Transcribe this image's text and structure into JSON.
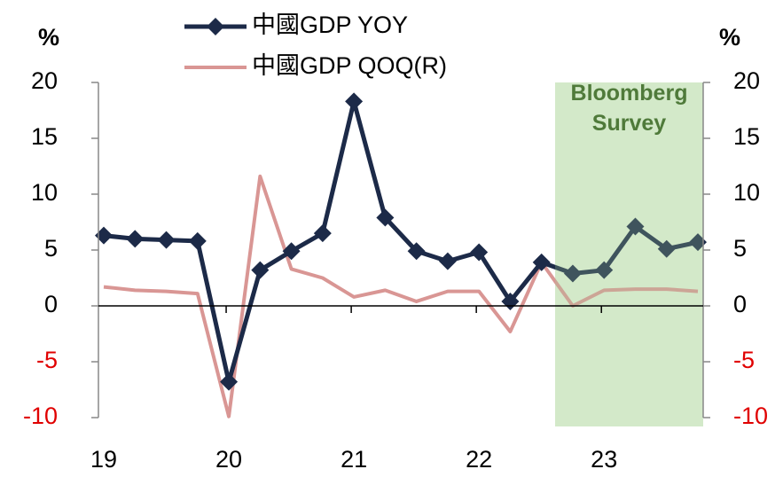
{
  "chart_data": {
    "type": "line",
    "categories": [
      "19",
      null,
      null,
      null,
      "20",
      null,
      null,
      null,
      "21",
      null,
      null,
      null,
      "22",
      null,
      null,
      null,
      "23",
      null,
      null,
      null
    ],
    "series": [
      {
        "name": "中國GDP YOY",
        "color": "#1c2a48",
        "marker": "diamond",
        "axis": "y",
        "values": [
          6.3,
          6.0,
          5.9,
          5.8,
          -6.8,
          3.2,
          4.9,
          6.5,
          18.3,
          7.9,
          4.9,
          4.0,
          4.8,
          0.4,
          3.9,
          2.9,
          3.2,
          7.1,
          5.1,
          5.7
        ]
      },
      {
        "name": "中國GDP QOQ(R)",
        "color": "#d99694",
        "axis": "y2",
        "values": [
          1.7,
          1.4,
          1.3,
          1.1,
          -9.9,
          11.6,
          3.3,
          2.5,
          0.8,
          1.4,
          0.4,
          1.3,
          1.3,
          -2.3,
          3.9,
          0.0,
          1.4,
          1.5,
          1.5,
          1.3
        ]
      }
    ],
    "ylabel": "%",
    "y2label": "%",
    "ylim": [
      -10,
      20
    ],
    "yticks": [
      20,
      15,
      10,
      5,
      0,
      -5,
      -10
    ],
    "y2lim": [
      -10,
      20
    ],
    "y2ticks": [
      20,
      15,
      10,
      5,
      0,
      -5,
      -10
    ],
    "negative_tick_color": "#e00000",
    "annotation": "Bloomberg Survey"
  }
}
